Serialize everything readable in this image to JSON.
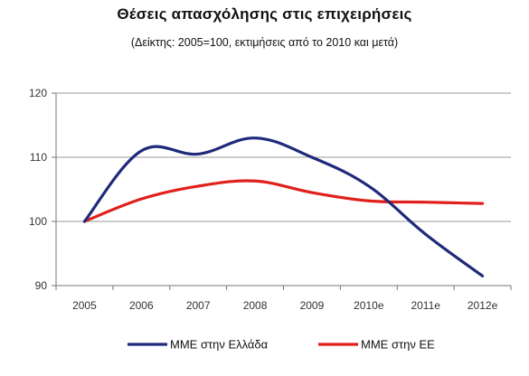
{
  "chart_data": {
    "type": "line",
    "title": "Θέσεις απασχόλησης στις επιχειρήσεις",
    "subtitle": "(Δείκτης: 2005=100, εκτιμήσεις από το 2010 και μετά)",
    "categories": [
      "2005",
      "2006",
      "2007",
      "2008",
      "2009",
      "2010e",
      "2011e",
      "2012e"
    ],
    "ylim": [
      90,
      120
    ],
    "yticks": [
      90,
      100,
      110,
      120
    ],
    "grid": true,
    "legend_position": "bottom",
    "series": [
      {
        "name": "ΜΜΕ στην Ελλάδα",
        "color": "#1f2a7a",
        "values": [
          100,
          111,
          110.5,
          113,
          110,
          105.5,
          98,
          91.5
        ]
      },
      {
        "name": "ΜΜΕ στην ΕΕ",
        "color": "#e0201a",
        "values": [
          100,
          103.5,
          105.5,
          106.3,
          104.5,
          103.2,
          103,
          102.8
        ]
      }
    ]
  }
}
